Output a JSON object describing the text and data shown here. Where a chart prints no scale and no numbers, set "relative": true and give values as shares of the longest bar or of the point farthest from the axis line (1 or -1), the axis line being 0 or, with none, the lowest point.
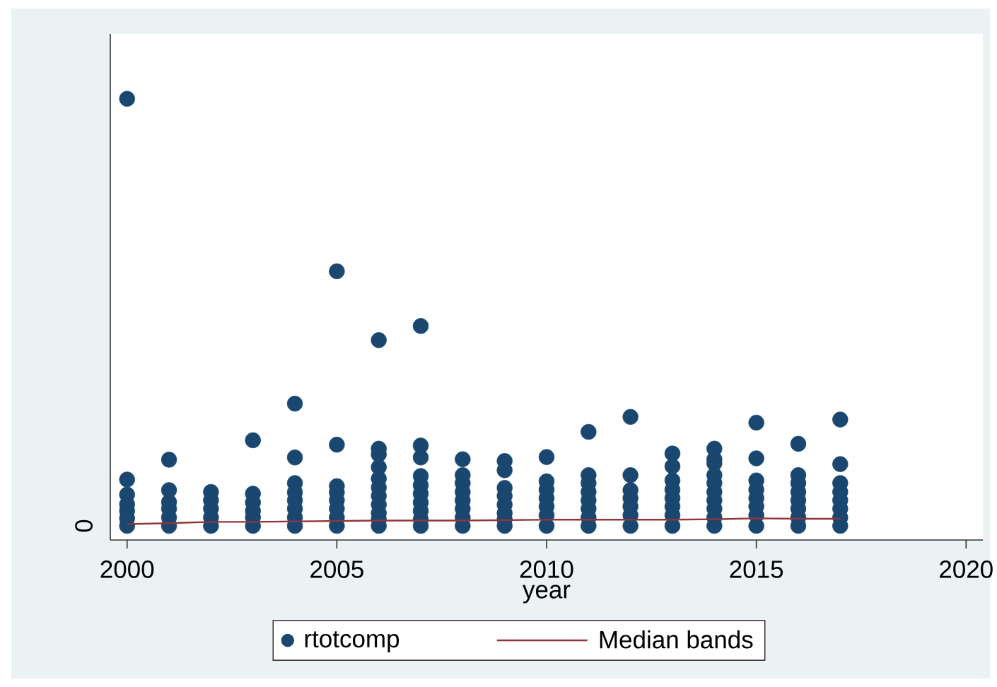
{
  "chart_data": {
    "type": "scatter",
    "xlabel": "year",
    "annotations": [
      "0"
    ],
    "relative": true,
    "xlim": [
      1999.6,
      2020.4
    ],
    "xticks": [
      2000,
      2005,
      2010,
      2015,
      2020
    ],
    "legend": "bottom",
    "marker": "circle",
    "series": [
      {
        "name": "rtotcomp",
        "color": "#1a476f",
        "x": [
          2000,
          2000,
          2000,
          2000,
          2000,
          2000,
          2000,
          2001,
          2001,
          2001,
          2001,
          2001,
          2001,
          2002,
          2002,
          2002,
          2002,
          2002,
          2003,
          2003,
          2003,
          2003,
          2003,
          2003,
          2004,
          2004,
          2004,
          2004,
          2004,
          2004,
          2004,
          2004,
          2005,
          2005,
          2005,
          2005,
          2005,
          2005,
          2005,
          2005,
          2006,
          2006,
          2006,
          2006,
          2006,
          2006,
          2006,
          2006,
          2006,
          2006,
          2006,
          2007,
          2007,
          2007,
          2007,
          2007,
          2007,
          2007,
          2007,
          2007,
          2007,
          2008,
          2008,
          2008,
          2008,
          2008,
          2008,
          2008,
          2008,
          2009,
          2009,
          2009,
          2009,
          2009,
          2009,
          2009,
          2009,
          2010,
          2010,
          2010,
          2010,
          2010,
          2010,
          2010,
          2011,
          2011,
          2011,
          2011,
          2011,
          2011,
          2011,
          2011,
          2012,
          2012,
          2012,
          2012,
          2012,
          2012,
          2012,
          2013,
          2013,
          2013,
          2013,
          2013,
          2013,
          2013,
          2013,
          2014,
          2014,
          2014,
          2014,
          2014,
          2014,
          2014,
          2014,
          2014,
          2014,
          2015,
          2015,
          2015,
          2015,
          2015,
          2015,
          2015,
          2015,
          2016,
          2016,
          2016,
          2016,
          2016,
          2016,
          2016,
          2016,
          2017,
          2017,
          2017,
          2017,
          2017,
          2017,
          2017,
          2017
        ],
        "values": [
          1.0,
          0.137,
          0.103,
          0.081,
          0.066,
          0.049,
          0.032,
          0.182,
          0.113,
          0.086,
          0.071,
          0.051,
          0.032,
          0.109,
          0.09,
          0.071,
          0.051,
          0.032,
          0.226,
          0.105,
          0.085,
          0.066,
          0.051,
          0.032,
          0.309,
          0.187,
          0.129,
          0.108,
          0.09,
          0.071,
          0.051,
          0.032,
          0.609,
          0.216,
          0.122,
          0.108,
          0.09,
          0.071,
          0.051,
          0.032,
          0.453,
          0.207,
          0.194,
          0.165,
          0.139,
          0.119,
          0.1,
          0.08,
          0.061,
          0.047,
          0.032,
          0.485,
          0.214,
          0.187,
          0.145,
          0.124,
          0.105,
          0.085,
          0.066,
          0.047,
          0.032,
          0.183,
          0.147,
          0.129,
          0.109,
          0.09,
          0.071,
          0.051,
          0.032,
          0.179,
          0.158,
          0.118,
          0.1,
          0.08,
          0.061,
          0.047,
          0.032,
          0.188,
          0.133,
          0.114,
          0.095,
          0.076,
          0.056,
          0.032,
          0.245,
          0.147,
          0.129,
          0.109,
          0.09,
          0.071,
          0.051,
          0.032,
          0.279,
          0.147,
          0.113,
          0.095,
          0.076,
          0.056,
          0.032,
          0.196,
          0.167,
          0.135,
          0.114,
          0.095,
          0.076,
          0.056,
          0.032,
          0.207,
          0.183,
          0.174,
          0.147,
          0.129,
          0.109,
          0.09,
          0.071,
          0.051,
          0.032,
          0.266,
          0.185,
          0.135,
          0.114,
          0.095,
          0.076,
          0.056,
          0.032,
          0.218,
          0.147,
          0.129,
          0.109,
          0.09,
          0.071,
          0.051,
          0.032,
          0.273,
          0.172,
          0.129,
          0.109,
          0.09,
          0.071,
          0.051,
          0.032
        ]
      },
      {
        "name": "Median bands",
        "type": "line",
        "marker": "none",
        "color": "#90353b",
        "x": [
          2000,
          2001,
          2002,
          2003,
          2004,
          2005,
          2006,
          2007,
          2008,
          2009,
          2010,
          2011,
          2012,
          2013,
          2014,
          2015,
          2016,
          2017
        ],
        "values": [
          0.036,
          0.038,
          0.041,
          0.041,
          0.042,
          0.043,
          0.044,
          0.044,
          0.044,
          0.045,
          0.046,
          0.046,
          0.046,
          0.046,
          0.047,
          0.049,
          0.048,
          0.048
        ]
      }
    ]
  }
}
